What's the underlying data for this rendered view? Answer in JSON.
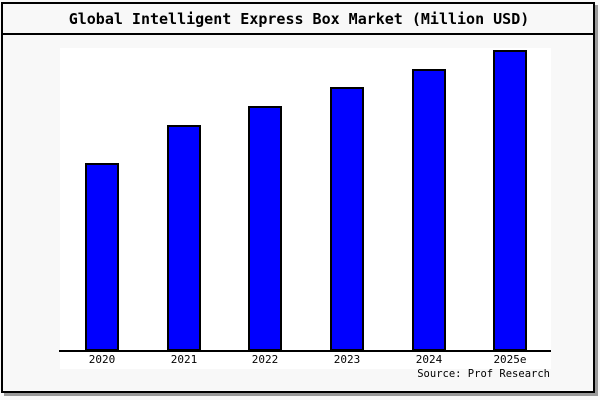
{
  "title": "Global Intelligent Express Box Market (Million USD)",
  "source_note": "Source: Prof Research",
  "colors": {
    "bar_fill": "#0000FF",
    "bar_border": "#000000",
    "canvas_background": "#F8F8F8",
    "plot_background": "#FFFFFF",
    "frame_border": "#000000",
    "frame_shadow": "#999999",
    "text": "#000000"
  },
  "chart_data": {
    "type": "bar",
    "title": "Global Intelligent Express Box Market (Million USD)",
    "categories": [
      "2020",
      "2021",
      "2022",
      "2023",
      "2024",
      "2025e"
    ],
    "values": [
      62.7,
      75.2,
      81.4,
      87.7,
      93.7,
      100
    ],
    "value_scale": "relative height, percent of 2025e bar (chart shows no y-axis ticks or value labels)",
    "xlabel": "",
    "ylabel": "",
    "ylim": [
      0,
      107
    ],
    "grid": false,
    "legend_position": "none",
    "annotations": [
      "Source: Prof Research"
    ]
  }
}
